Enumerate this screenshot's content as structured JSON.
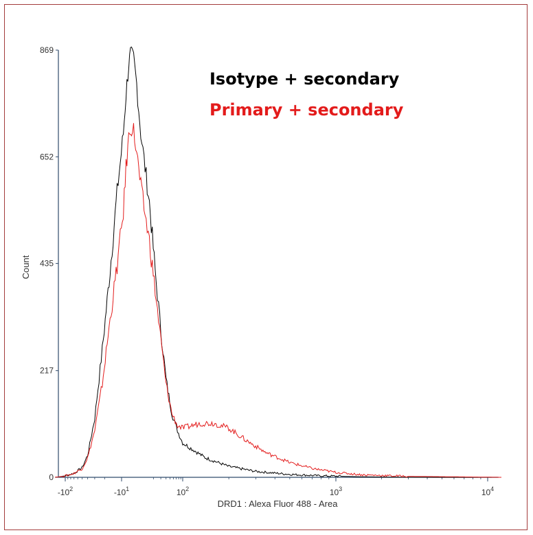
{
  "chart_data": {
    "type": "line",
    "xlabel": "DRD1 : Alexa Fluor 488 - Area",
    "ylabel": "Count",
    "x_scale": "biexponential",
    "xlim": [
      -200,
      12000
    ],
    "ylim": [
      0,
      869
    ],
    "y_ticks": [
      "0",
      "217",
      "435",
      "652",
      "869"
    ],
    "x_ticks": [
      {
        "value": -100,
        "base": "-10",
        "exp": "2"
      },
      {
        "value": -10,
        "base": "-10",
        "exp": "1"
      },
      {
        "value": 100,
        "base": "10",
        "exp": "2"
      },
      {
        "value": 1000,
        "base": "10",
        "exp": "3"
      },
      {
        "value": 10000,
        "base": "10",
        "exp": "4"
      }
    ],
    "grid": false,
    "legend_position": "top-center",
    "series": [
      {
        "name": "Isotype + secondary",
        "color": "#000000",
        "points": [
          [
            -200,
            0
          ],
          [
            -150,
            1
          ],
          [
            -100,
            3
          ],
          [
            -70,
            8
          ],
          [
            -50,
            20
          ],
          [
            -40,
            45
          ],
          [
            -30,
            120
          ],
          [
            -22,
            260
          ],
          [
            -16,
            420
          ],
          [
            -12,
            580
          ],
          [
            -8,
            700
          ],
          [
            -5,
            780
          ],
          [
            -2,
            840
          ],
          [
            0,
            860
          ],
          [
            3,
            850
          ],
          [
            6,
            800
          ],
          [
            10,
            700
          ],
          [
            16,
            560
          ],
          [
            22,
            420
          ],
          [
            30,
            300
          ],
          [
            40,
            200
          ],
          [
            55,
            130
          ],
          [
            75,
            95
          ],
          [
            100,
            70
          ],
          [
            140,
            40
          ],
          [
            200,
            22
          ],
          [
            300,
            12
          ],
          [
            500,
            6
          ],
          [
            800,
            3
          ],
          [
            1500,
            1
          ],
          [
            3000,
            0
          ],
          [
            12000,
            0
          ]
        ]
      },
      {
        "name": "Primary + secondary",
        "color": "#e31b1b",
        "points": [
          [
            -200,
            0
          ],
          [
            -150,
            1
          ],
          [
            -100,
            3
          ],
          [
            -70,
            8
          ],
          [
            -50,
            18
          ],
          [
            -40,
            40
          ],
          [
            -30,
            95
          ],
          [
            -22,
            190
          ],
          [
            -16,
            320
          ],
          [
            -12,
            430
          ],
          [
            -8,
            540
          ],
          [
            -5,
            630
          ],
          [
            -2,
            690
          ],
          [
            0,
            715
          ],
          [
            3,
            705
          ],
          [
            6,
            660
          ],
          [
            10,
            590
          ],
          [
            16,
            480
          ],
          [
            22,
            380
          ],
          [
            30,
            280
          ],
          [
            40,
            190
          ],
          [
            55,
            130
          ],
          [
            75,
            105
          ],
          [
            100,
            100
          ],
          [
            130,
            110
          ],
          [
            160,
            110
          ],
          [
            200,
            100
          ],
          [
            260,
            75
          ],
          [
            350,
            50
          ],
          [
            500,
            30
          ],
          [
            700,
            18
          ],
          [
            1000,
            10
          ],
          [
            1500,
            5
          ],
          [
            3000,
            2
          ],
          [
            6000,
            1
          ],
          [
            12000,
            0
          ]
        ]
      }
    ]
  }
}
